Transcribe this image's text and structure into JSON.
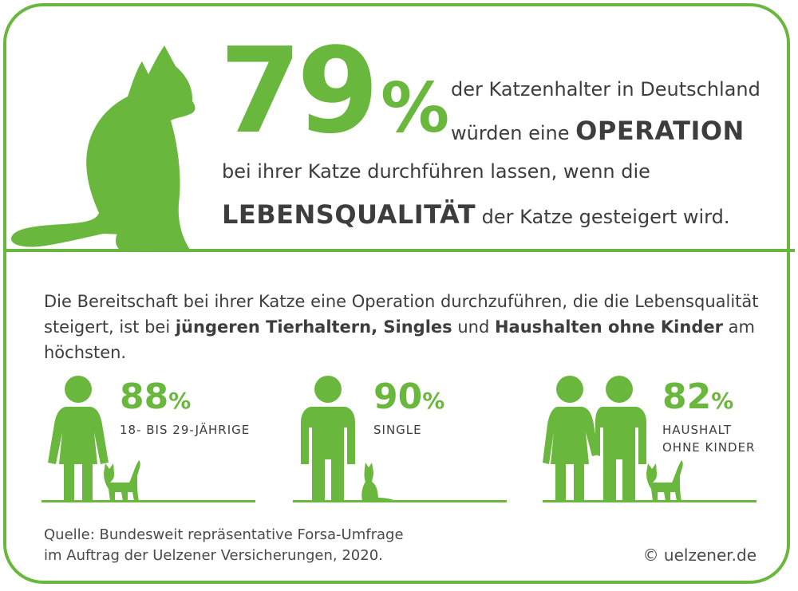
{
  "headline": {
    "number": "79",
    "percent": "%",
    "line1": "der Katzenhalter in Deutschland",
    "line2_pre": "würden eine ",
    "line2_bold": "OPERATION",
    "line3": "bei ihrer Katze durchführen lassen, wenn die",
    "line4_bold": "LEBENSQUALITÄT",
    "line4_post": " der Katze gesteigert wird."
  },
  "intro": {
    "part1": "Die Bereitschaft bei ihrer Katze eine Operation durchzuführen, die die Lebensqualität steigert, ist bei ",
    "bold1": "jüngeren Tierhaltern, Singles",
    "part2": " und ",
    "bold2": "Haushalten ohne Kinder",
    "part3": " am höchsten."
  },
  "stats": [
    {
      "number": "88",
      "percent": "%",
      "caption": "18- BIS 29-JÄHRIGE",
      "caption2": ""
    },
    {
      "number": "90",
      "percent": "%",
      "caption": "SINGLE",
      "caption2": ""
    },
    {
      "number": "82",
      "percent": "%",
      "caption": "HAUSHALT",
      "caption2": "OHNE KINDER"
    }
  ],
  "footer": {
    "source_line1": "Quelle: Bundesweit repräsentative Forsa-Umfrage",
    "source_line2": "im Auftrag der Uelzener Versicherungen, 2020.",
    "copyright": "© uelzener.de"
  },
  "colors": {
    "accent": "#6ab73d",
    "text": "#3d3d3d"
  },
  "icons": [
    "cat-silhouette-icon",
    "woman-icon",
    "man-icon",
    "couple-icon",
    "small-cat-icon"
  ]
}
